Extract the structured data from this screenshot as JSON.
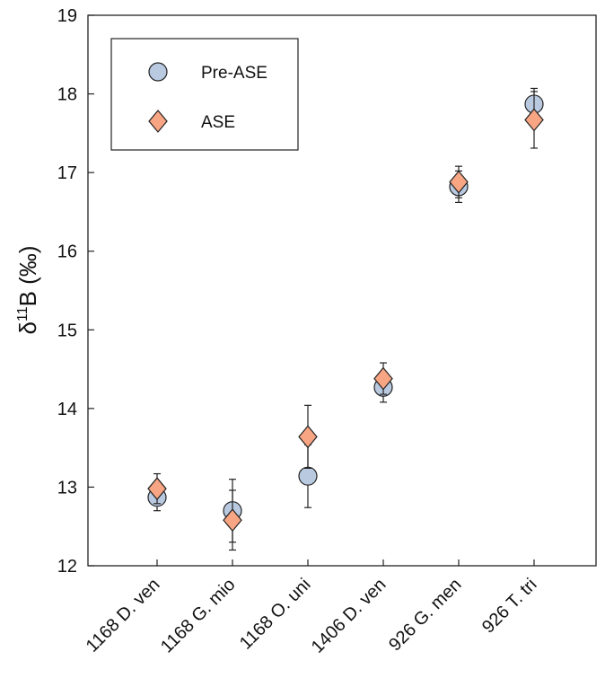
{
  "chart_data": {
    "type": "scatter",
    "categories": [
      "1168 D. ven",
      "1168 G. mio",
      "1168 O. uni",
      "1406 D. ven",
      "926 G. men",
      "926 T. tri"
    ],
    "ylabel": {
      "delta": "δ",
      "sup": "11",
      "main": "B (‰)"
    },
    "ylim": [
      12,
      19
    ],
    "yticks": [
      12,
      13,
      14,
      15,
      16,
      17,
      18,
      19
    ],
    "grid": false,
    "legend_position": "top-left",
    "series": [
      {
        "name": "Pre-ASE",
        "marker": "circle",
        "color": "#b8c9e0",
        "values": [
          12.87,
          12.7,
          13.14,
          14.27,
          16.82,
          17.87
        ],
        "err_low": [
          12.7,
          12.3,
          12.74,
          14.08,
          16.62,
          17.67
        ],
        "err_high": [
          13.04,
          13.1,
          13.54,
          14.46,
          17.02,
          18.07
        ]
      },
      {
        "name": "ASE",
        "marker": "diamond",
        "color": "#f8a583",
        "values": [
          12.98,
          12.58,
          13.64,
          14.38,
          16.88,
          17.67
        ],
        "err_low": [
          12.79,
          12.2,
          13.24,
          14.18,
          16.68,
          17.31
        ],
        "err_high": [
          13.17,
          12.96,
          14.04,
          14.58,
          17.08,
          18.03
        ]
      }
    ]
  }
}
